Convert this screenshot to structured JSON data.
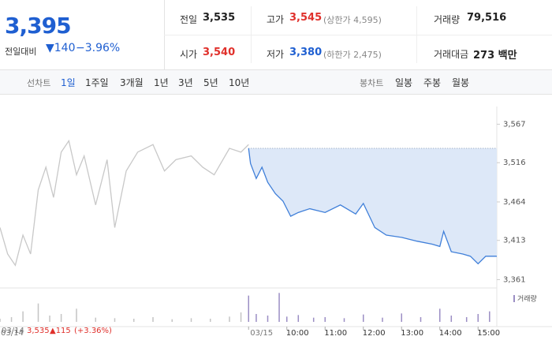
{
  "header": {
    "price": "3,395",
    "change_label": "전일대비",
    "change": "▼140",
    "change_rate": "−3.96%"
  },
  "summary": {
    "prev_close": {
      "label": "전일",
      "value": "3,535",
      "number": 3535
    },
    "high": {
      "label": "고가",
      "value": "3,545",
      "note": "(상한가 4,595)"
    },
    "volume": {
      "label": "거래량",
      "value": "79,516"
    },
    "open": {
      "label": "시가",
      "value": "3,540"
    },
    "low": {
      "label": "저가",
      "value": "3,380",
      "note": "(하한가 2,475)"
    },
    "amount": {
      "label": "거래대금",
      "value": "273 백만"
    }
  },
  "tabs": {
    "line_label": "선차트",
    "line": [
      "1일",
      "1주일",
      "3개월",
      "1년",
      "3년",
      "5년",
      "10년"
    ],
    "candle_label": "봉차트",
    "candle": [
      "일봉",
      "주봉",
      "월봉"
    ]
  },
  "chart_data": {
    "type": "line",
    "days": [
      "03/14",
      "03/15"
    ],
    "xticks": [
      {
        "value": 10,
        "label": "10:00"
      },
      {
        "value": 11,
        "label": "11:00"
      },
      {
        "value": 12,
        "label": "12:00"
      },
      {
        "value": 13,
        "label": "13:00"
      },
      {
        "value": 14,
        "label": "14:00"
      },
      {
        "value": 15,
        "label": "15:00"
      }
    ],
    "ylim": [
      3350,
      3580
    ],
    "yticks": [
      {
        "value": 3361,
        "label": "3,361"
      },
      {
        "value": 3413,
        "label": "3,413"
      },
      {
        "value": 3464,
        "label": "3,464"
      },
      {
        "value": 3516,
        "label": "3,516"
      },
      {
        "value": 3567,
        "label": "3,567"
      }
    ],
    "series": [
      {
        "color": "#c8c8c8",
        "x": [
          9,
          9.2,
          9.4,
          9.6,
          9.8,
          10,
          10.2,
          10.4,
          10.6,
          10.8,
          11,
          11.2,
          11.5,
          11.8,
          12,
          12.3,
          12.6,
          13,
          13.3,
          13.6,
          14,
          14.3,
          14.6,
          15,
          15.3,
          15.5
        ],
        "values": [
          3430,
          3395,
          3380,
          3420,
          3395,
          3480,
          3510,
          3470,
          3530,
          3545,
          3500,
          3525,
          3460,
          3520,
          3430,
          3505,
          3530,
          3540,
          3505,
          3520,
          3525,
          3510,
          3500,
          3535,
          3530,
          3540
        ]
      },
      {
        "color": "#3f7fd9",
        "x": [
          9,
          9.05,
          9.2,
          9.35,
          9.5,
          9.7,
          9.9,
          10.1,
          10.3,
          10.6,
          11,
          11.4,
          11.8,
          12,
          12.3,
          12.6,
          13,
          13.4,
          13.8,
          14,
          14.1,
          14.3,
          14.6,
          14.8,
          15,
          15.2,
          15.4
        ],
        "values": [
          3535,
          3515,
          3495,
          3510,
          3490,
          3475,
          3465,
          3445,
          3450,
          3455,
          3450,
          3460,
          3448,
          3462,
          3430,
          3420,
          3417,
          3412,
          3408,
          3405,
          3425,
          3398,
          3395,
          3392,
          3382,
          3392,
          3392
        ]
      }
    ],
    "volume_label": "거래량",
    "volume_ylim": [
      0,
      6000
    ],
    "volume": [
      {
        "color": "#c4c4c4",
        "x": [
          9,
          9.3,
          9.6,
          10,
          10.3,
          10.6,
          11,
          11.5,
          12,
          12.5,
          13,
          13.5,
          14,
          14.5,
          15,
          15.3
        ],
        "values": [
          600,
          900,
          2000,
          3500,
          1200,
          1500,
          2500,
          800,
          700,
          600,
          900,
          500,
          700,
          600,
          1000,
          1800
        ]
      },
      {
        "color": "#9b8ec4",
        "x": [
          9,
          9.2,
          9.5,
          9.8,
          10,
          10.3,
          10.7,
          11,
          11.5,
          12,
          12.5,
          13,
          13.5,
          14,
          14.3,
          14.7,
          15,
          15.3
        ],
        "values": [
          5000,
          1500,
          1200,
          5500,
          1000,
          1300,
          800,
          900,
          700,
          1400,
          800,
          1600,
          900,
          2500,
          1200,
          900,
          1500,
          2000
        ]
      }
    ],
    "footer": {
      "date": "03/14",
      "price": "3,535",
      "change": "▲115",
      "rate": "(+3.36%)"
    }
  }
}
